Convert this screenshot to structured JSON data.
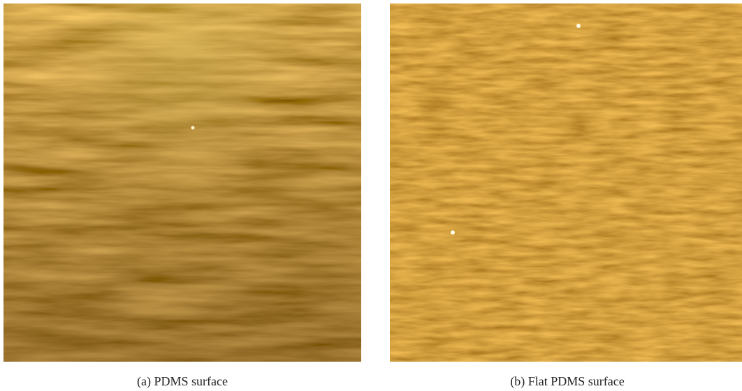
{
  "figures": [
    {
      "caption": "(a) PDMS surface"
    },
    {
      "caption": "(b) Flat PDMS surface"
    }
  ]
}
